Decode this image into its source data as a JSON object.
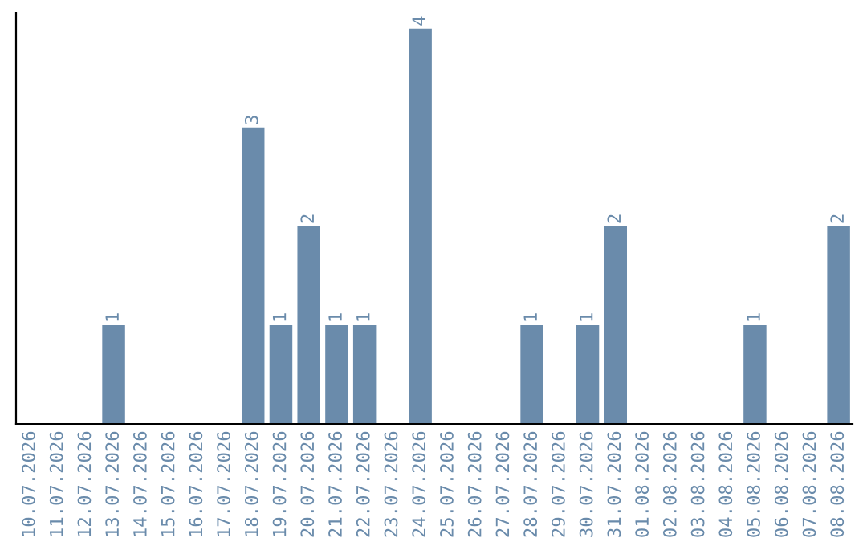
{
  "chart_data": {
    "type": "bar",
    "color": "#6a8bab",
    "categories": [
      "10.07.2026",
      "11.07.2026",
      "12.07.2026",
      "13.07.2026",
      "14.07.2026",
      "15.07.2026",
      "16.07.2026",
      "17.07.2026",
      "18.07.2026",
      "19.07.2026",
      "20.07.2026",
      "21.07.2026",
      "22.07.2026",
      "23.07.2026",
      "24.07.2026",
      "25.07.2026",
      "26.07.2026",
      "27.07.2026",
      "28.07.2026",
      "29.07.2026",
      "30.07.2026",
      "31.07.2026",
      "01.08.2026",
      "02.08.2026",
      "03.08.2026",
      "04.08.2026",
      "05.08.2026",
      "06.08.2026",
      "07.08.2026",
      "08.08.2026"
    ],
    "values": [
      0,
      0,
      0,
      1,
      0,
      0,
      0,
      0,
      3,
      1,
      2,
      1,
      1,
      0,
      4,
      0,
      0,
      0,
      1,
      0,
      1,
      2,
      0,
      0,
      0,
      0,
      1,
      0,
      0,
      2
    ],
    "value_labels": [
      null,
      null,
      null,
      "1",
      null,
      null,
      null,
      null,
      "3",
      "1",
      "2",
      "1",
      "1",
      null,
      "4",
      null,
      null,
      null,
      "1",
      null,
      "1",
      "2",
      null,
      null,
      null,
      null,
      "1",
      null,
      null,
      "2"
    ],
    "tick_labels": "x",
    "grid": false,
    "legend": false
  }
}
